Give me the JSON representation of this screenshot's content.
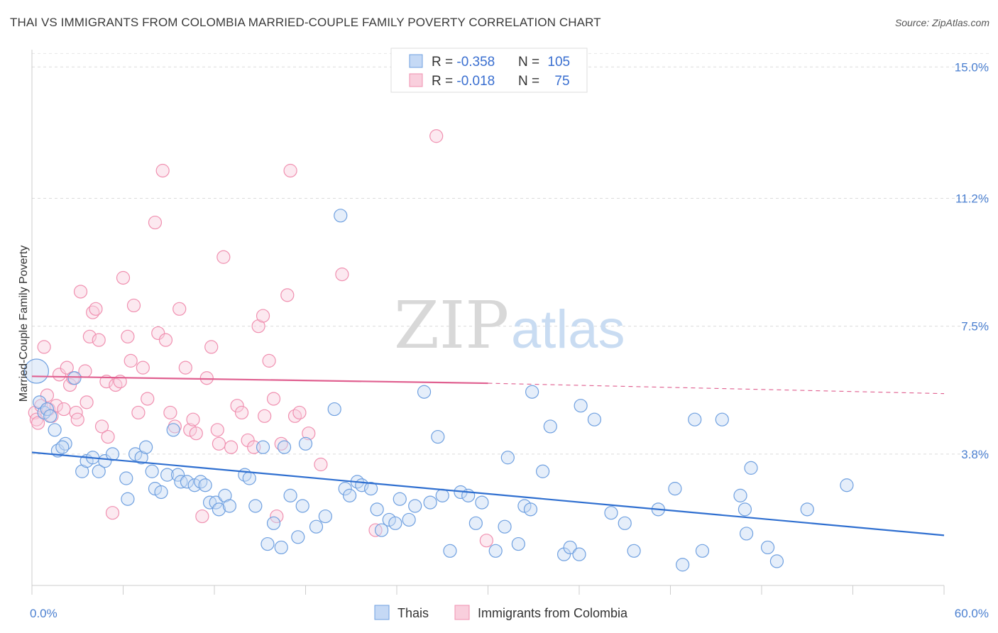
{
  "title": "THAI VS IMMIGRANTS FROM COLOMBIA MARRIED-COUPLE FAMILY POVERTY CORRELATION CHART",
  "source": "Source: ZipAtlas.com",
  "watermark": {
    "part1": "ZIP",
    "part2": "atlas"
  },
  "colors": {
    "blue": "#6fa0e0",
    "blue_line": "#2f6fd0",
    "pink": "#f090b0",
    "pink_line": "#e06090",
    "tick": "#4a7fd0"
  },
  "chart_data": {
    "type": "scatter",
    "title": "THAI VS IMMIGRANTS FROM COLOMBIA MARRIED-COUPLE FAMILY POVERTY CORRELATION CHART",
    "xlabel": "",
    "ylabel": "Married-Couple Family Poverty",
    "xlim": [
      0,
      60
    ],
    "ylim": [
      0,
      15.5
    ],
    "x_tick_labels": [
      "0.0%",
      "60.0%"
    ],
    "y_ticks": [
      3.8,
      7.5,
      11.2,
      15.0
    ],
    "y_tick_labels": [
      "3.8%",
      "7.5%",
      "11.2%",
      "15.0%"
    ],
    "grid": true,
    "legend_placement": "top-center",
    "stats": [
      {
        "r_label": "R = ",
        "r": "-0.358",
        "n_label": "N = ",
        "n": "105"
      },
      {
        "r_label": "R = ",
        "r": "-0.018",
        "n_label": "N = ",
        "n": "75"
      }
    ],
    "series": [
      {
        "name": "Thais",
        "color": "#6fa0e0",
        "trend": {
          "x": [
            0,
            60
          ],
          "y": [
            3.85,
            1.45
          ],
          "dashed_from": null
        },
        "points": [
          [
            0.3,
            6.2
          ],
          [
            0.5,
            5.3
          ],
          [
            0.8,
            5.0
          ],
          [
            1.0,
            5.1
          ],
          [
            1.2,
            4.9
          ],
          [
            1.5,
            4.5
          ],
          [
            1.7,
            3.9
          ],
          [
            2.2,
            4.1
          ],
          [
            2.8,
            6.0
          ],
          [
            3.3,
            3.3
          ],
          [
            3.6,
            3.6
          ],
          [
            4.0,
            3.7
          ],
          [
            4.4,
            3.3
          ],
          [
            4.8,
            3.6
          ],
          [
            5.3,
            3.8
          ],
          [
            6.2,
            3.1
          ],
          [
            6.3,
            2.5
          ],
          [
            6.8,
            3.8
          ],
          [
            7.2,
            3.7
          ],
          [
            7.5,
            4.0
          ],
          [
            7.9,
            3.3
          ],
          [
            8.1,
            2.8
          ],
          [
            8.5,
            2.7
          ],
          [
            8.9,
            3.2
          ],
          [
            9.3,
            4.5
          ],
          [
            9.6,
            3.2
          ],
          [
            9.8,
            3.0
          ],
          [
            10.2,
            3.0
          ],
          [
            10.7,
            2.9
          ],
          [
            11.1,
            3.0
          ],
          [
            11.4,
            2.9
          ],
          [
            11.7,
            2.4
          ],
          [
            12.1,
            2.4
          ],
          [
            12.3,
            2.2
          ],
          [
            12.7,
            2.6
          ],
          [
            13.0,
            2.3
          ],
          [
            14.0,
            3.2
          ],
          [
            14.3,
            3.1
          ],
          [
            14.7,
            2.3
          ],
          [
            15.2,
            4.0
          ],
          [
            15.5,
            1.2
          ],
          [
            15.9,
            1.8
          ],
          [
            16.4,
            1.1
          ],
          [
            16.6,
            4.0
          ],
          [
            17.0,
            2.6
          ],
          [
            17.5,
            1.4
          ],
          [
            17.8,
            2.3
          ],
          [
            18.0,
            4.1
          ],
          [
            18.7,
            1.7
          ],
          [
            19.3,
            2.0
          ],
          [
            19.9,
            5.1
          ],
          [
            20.3,
            10.7
          ],
          [
            20.6,
            2.8
          ],
          [
            20.9,
            2.6
          ],
          [
            21.4,
            3.0
          ],
          [
            21.7,
            2.9
          ],
          [
            22.3,
            2.8
          ],
          [
            22.7,
            2.2
          ],
          [
            23.0,
            1.6
          ],
          [
            23.5,
            1.9
          ],
          [
            23.9,
            1.8
          ],
          [
            24.2,
            2.5
          ],
          [
            24.8,
            1.9
          ],
          [
            25.2,
            2.3
          ],
          [
            25.8,
            5.6
          ],
          [
            26.2,
            2.4
          ],
          [
            26.7,
            4.3
          ],
          [
            27.0,
            2.6
          ],
          [
            27.5,
            1.0
          ],
          [
            28.2,
            2.7
          ],
          [
            28.7,
            2.6
          ],
          [
            29.2,
            1.8
          ],
          [
            29.6,
            2.4
          ],
          [
            30.5,
            1.0
          ],
          [
            31.1,
            1.7
          ],
          [
            31.3,
            3.7
          ],
          [
            32.0,
            1.2
          ],
          [
            32.4,
            2.3
          ],
          [
            32.8,
            2.2
          ],
          [
            32.9,
            5.6
          ],
          [
            33.6,
            3.3
          ],
          [
            34.1,
            4.6
          ],
          [
            35.0,
            0.9
          ],
          [
            35.4,
            1.1
          ],
          [
            36.0,
            0.9
          ],
          [
            36.1,
            5.2
          ],
          [
            37.0,
            4.8
          ],
          [
            38.1,
            2.1
          ],
          [
            39.0,
            1.8
          ],
          [
            39.6,
            1.0
          ],
          [
            41.2,
            2.2
          ],
          [
            42.3,
            2.8
          ],
          [
            42.8,
            0.6
          ],
          [
            43.6,
            4.8
          ],
          [
            44.1,
            1.0
          ],
          [
            45.4,
            4.8
          ],
          [
            46.6,
            2.6
          ],
          [
            47.0,
            1.5
          ],
          [
            47.3,
            3.4
          ],
          [
            48.4,
            1.1
          ],
          [
            49.0,
            0.7
          ],
          [
            51.0,
            2.2
          ],
          [
            53.6,
            2.9
          ],
          [
            46.9,
            2.2
          ],
          [
            2.0,
            4.0
          ]
        ]
      },
      {
        "name": "Immigrants from Colombia",
        "color": "#f090b0",
        "trend": {
          "x": [
            0,
            30,
            60
          ],
          "y": [
            6.05,
            5.85,
            5.55
          ],
          "dashed_from": 30
        },
        "points": [
          [
            0.2,
            5.0
          ],
          [
            0.3,
            4.8
          ],
          [
            0.4,
            4.7
          ],
          [
            0.6,
            5.2
          ],
          [
            0.8,
            6.9
          ],
          [
            1.0,
            5.5
          ],
          [
            1.1,
            5.1
          ],
          [
            1.3,
            4.9
          ],
          [
            1.6,
            5.2
          ],
          [
            1.8,
            6.1
          ],
          [
            2.1,
            5.1
          ],
          [
            2.3,
            6.3
          ],
          [
            2.5,
            5.8
          ],
          [
            2.7,
            6.0
          ],
          [
            2.9,
            5.0
          ],
          [
            3.0,
            4.8
          ],
          [
            3.2,
            8.5
          ],
          [
            3.5,
            6.2
          ],
          [
            3.6,
            5.3
          ],
          [
            3.8,
            7.2
          ],
          [
            4.0,
            7.9
          ],
          [
            4.2,
            8.0
          ],
          [
            4.4,
            7.1
          ],
          [
            4.6,
            4.6
          ],
          [
            4.9,
            5.9
          ],
          [
            5.0,
            4.3
          ],
          [
            5.3,
            2.1
          ],
          [
            5.5,
            5.8
          ],
          [
            5.8,
            5.9
          ],
          [
            6.0,
            8.9
          ],
          [
            6.3,
            7.2
          ],
          [
            6.5,
            6.5
          ],
          [
            6.7,
            8.1
          ],
          [
            7.0,
            5.0
          ],
          [
            7.3,
            6.3
          ],
          [
            7.6,
            5.4
          ],
          [
            8.1,
            10.5
          ],
          [
            8.3,
            7.3
          ],
          [
            8.6,
            12.0
          ],
          [
            8.8,
            7.1
          ],
          [
            9.1,
            5.0
          ],
          [
            9.7,
            8.0
          ],
          [
            10.1,
            6.3
          ],
          [
            10.4,
            4.5
          ],
          [
            10.6,
            4.8
          ],
          [
            10.8,
            4.4
          ],
          [
            11.2,
            2.0
          ],
          [
            11.5,
            6.0
          ],
          [
            11.8,
            6.9
          ],
          [
            12.2,
            4.5
          ],
          [
            12.6,
            9.5
          ],
          [
            13.1,
            4.0
          ],
          [
            13.5,
            5.2
          ],
          [
            13.8,
            5.0
          ],
          [
            14.2,
            4.2
          ],
          [
            14.6,
            4.0
          ],
          [
            14.9,
            7.5
          ],
          [
            15.2,
            7.8
          ],
          [
            15.6,
            6.5
          ],
          [
            15.9,
            5.4
          ],
          [
            16.1,
            2.0
          ],
          [
            16.4,
            4.1
          ],
          [
            16.8,
            8.4
          ],
          [
            17.0,
            12.0
          ],
          [
            17.3,
            4.9
          ],
          [
            17.6,
            5.0
          ],
          [
            18.2,
            4.4
          ],
          [
            19.0,
            3.5
          ],
          [
            20.4,
            9.0
          ],
          [
            22.6,
            1.6
          ],
          [
            26.6,
            13.0
          ],
          [
            29.9,
            1.3
          ],
          [
            12.3,
            4.1
          ],
          [
            9.4,
            4.6
          ],
          [
            15.3,
            4.9
          ]
        ]
      }
    ]
  },
  "legend_bottom": [
    {
      "label": "Thais"
    },
    {
      "label": "Immigrants from Colombia"
    }
  ]
}
